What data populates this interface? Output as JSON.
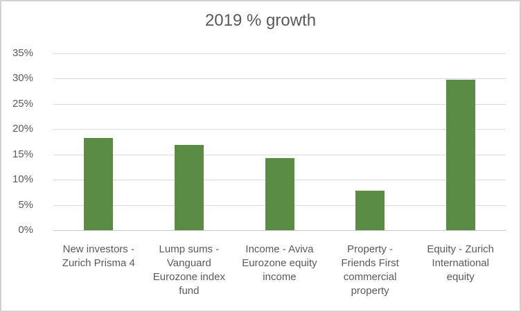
{
  "chart_data": {
    "type": "bar",
    "title": "2019 % growth",
    "categories": [
      "New investors -\nZurich Prisma 4",
      "Lump sums -\nVanguard\nEurozone index\nfund",
      "Income - Aviva\nEurozone equity\nincome",
      "Property -\nFriends First\ncommercial\nproperty",
      "Equity - Zurich\nInternational\nequity"
    ],
    "values": [
      18.3,
      16.9,
      14.3,
      7.8,
      29.8
    ],
    "xlabel": "",
    "ylabel": "",
    "ylim": [
      0,
      35
    ],
    "ytick_step": 5,
    "ytick_labels": [
      "0%",
      "5%",
      "10%",
      "15%",
      "20%",
      "25%",
      "30%",
      "35%"
    ],
    "grid": true,
    "legend": false
  },
  "colors": {
    "bar": "#5a8c46",
    "gridline": "#d9d9d9",
    "axis_line": "#c6c6c6",
    "axis_text": "#595959",
    "title_text": "#595959",
    "border": "#d2d2d2",
    "background": "#ffffff"
  }
}
